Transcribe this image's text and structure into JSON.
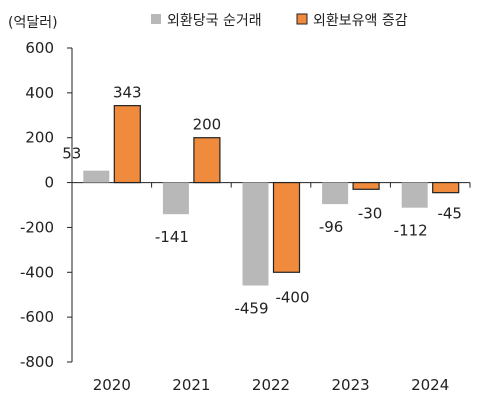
{
  "chart_data": {
    "type": "bar",
    "unit_label": "(억달러)",
    "categories": [
      "2020",
      "2021",
      "2022",
      "2023",
      "2024"
    ],
    "series": [
      {
        "name": "외환당국 순거래",
        "color": "#b8b8b8",
        "values": [
          53,
          -141,
          -459,
          -96,
          -112
        ]
      },
      {
        "name": "외환보유액 증감",
        "color": "#f08a3c",
        "values": [
          343,
          200,
          -400,
          -30,
          -45
        ]
      }
    ],
    "ylim": [
      -800,
      600
    ],
    "yticks": [
      600,
      400,
      200,
      0,
      -200,
      -400,
      -600,
      -800
    ],
    "legend_position": "top",
    "grid": false
  }
}
